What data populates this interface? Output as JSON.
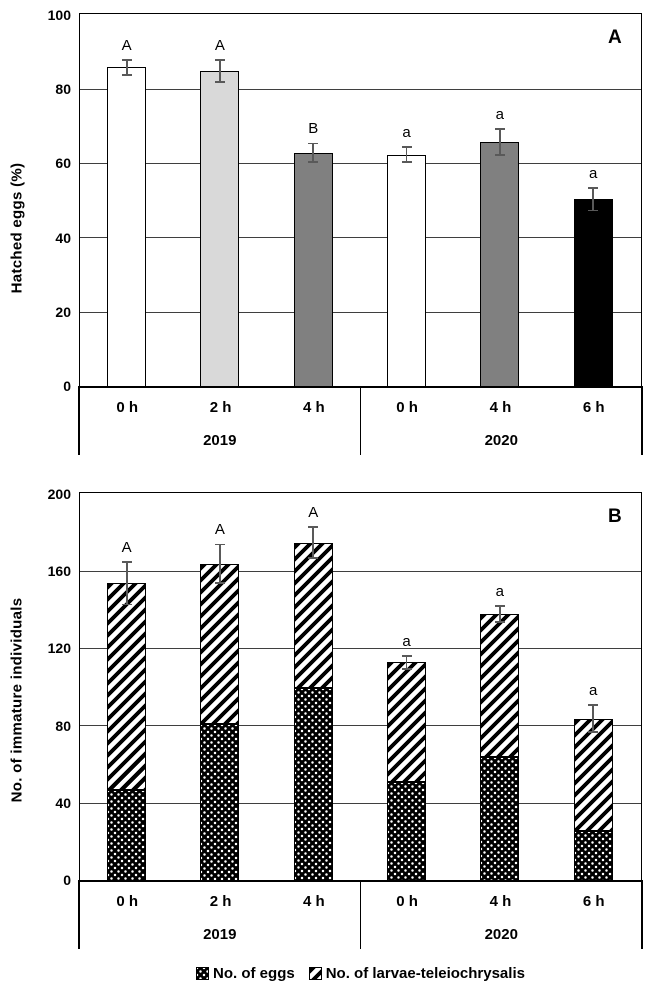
{
  "colors": {
    "error_bar": "#595959",
    "axis": "#000000",
    "gridline": "#3f3f3f",
    "bar_border": "#000000",
    "background": "#ffffff"
  },
  "chart_data": [
    {
      "type": "bar",
      "panel_label": "A",
      "ylabel": "Hatched eggs (%)",
      "ylim": [
        0,
        100
      ],
      "yticks": [
        0,
        20,
        40,
        60,
        80,
        100
      ],
      "grid": true,
      "legend_position": "none",
      "categories": [
        "0 h",
        "2 h",
        "4 h",
        "0 h",
        "4 h",
        "6 h"
      ],
      "group_labels": [
        "2019",
        "2020"
      ],
      "values": [
        86,
        85,
        63,
        62.5,
        66,
        50.5
      ],
      "errors": [
        2,
        3,
        2.5,
        2,
        3.5,
        3
      ],
      "sig_letters": [
        "A",
        "A",
        "B",
        "a",
        "a",
        "a"
      ],
      "bar_colors": [
        "#ffffff",
        "#d9d9d9",
        "#808080",
        "#ffffff",
        "#808080",
        "#000000"
      ]
    },
    {
      "type": "stacked_bar",
      "panel_label": "B",
      "ylabel": "No. of immature individuals",
      "ylim": [
        0,
        200
      ],
      "yticks": [
        0,
        40,
        80,
        120,
        160,
        200
      ],
      "grid": true,
      "legend_position": "bottom",
      "categories": [
        "0 h",
        "2 h",
        "4 h",
        "0 h",
        "4 h",
        "6 h"
      ],
      "group_labels": [
        "2019",
        "2020"
      ],
      "series": [
        {
          "name": "No. of eggs",
          "pattern": "dots",
          "values": [
            47,
            81,
            100,
            51,
            64,
            26
          ]
        },
        {
          "name": "No. of larvae-teleiochrysalis",
          "pattern": "hatch",
          "values": [
            107,
            83,
            75,
            62,
            74,
            58
          ]
        }
      ],
      "totals": [
        154,
        164,
        175,
        113,
        138,
        84
      ],
      "errors": [
        11,
        10,
        8,
        3.5,
        4,
        7
      ],
      "sig_letters": [
        "A",
        "A",
        "A",
        "a",
        "a",
        "a"
      ]
    }
  ]
}
